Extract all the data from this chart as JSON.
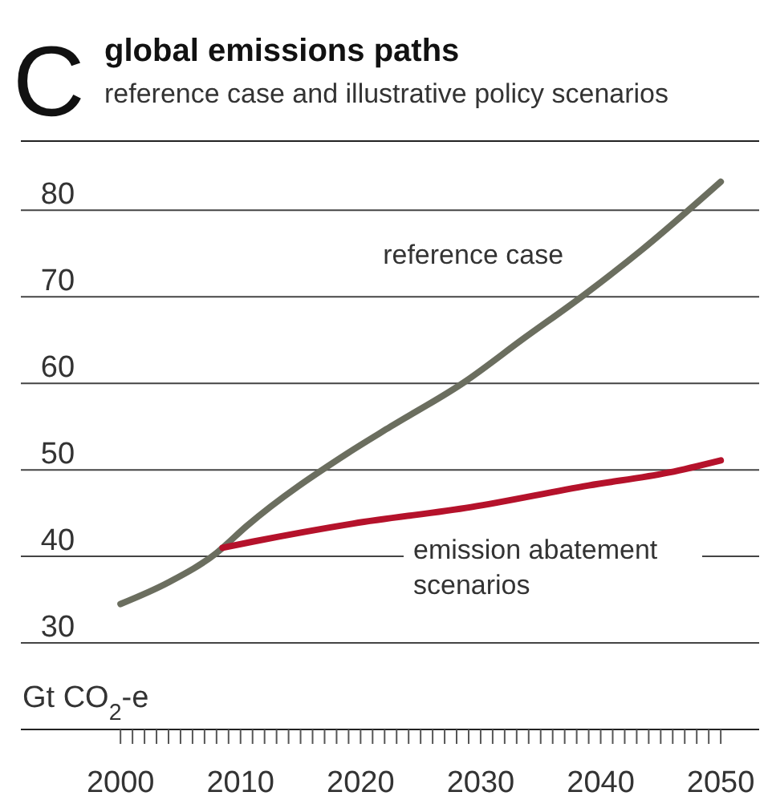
{
  "chart_data": {
    "type": "line",
    "title": "global emissions paths",
    "subtitle": "reference case and illustrative policy scenarios",
    "ylabel": "Gt CO$_{2}$-e",
    "annotations": [
      "C"
    ],
    "xlim": [
      1991.7,
      2053.2
    ],
    "ylim": [
      20,
      88
    ],
    "xticks": [
      2000,
      {
        "value": 2001,
        "label": null
      },
      {
        "value": 2002,
        "label": null
      },
      {
        "value": 2003,
        "label": null
      },
      {
        "value": 2004,
        "label": null
      },
      {
        "value": 2005,
        "label": null
      },
      {
        "value": 2006,
        "label": null
      },
      {
        "value": 2007,
        "label": null
      },
      {
        "value": 2008,
        "label": null
      },
      {
        "value": 2009,
        "label": null
      },
      2010,
      {
        "value": 2011,
        "label": null
      },
      {
        "value": 2012,
        "label": null
      },
      {
        "value": 2013,
        "label": null
      },
      {
        "value": 2014,
        "label": null
      },
      {
        "value": 2015,
        "label": null
      },
      {
        "value": 2016,
        "label": null
      },
      {
        "value": 2017,
        "label": null
      },
      {
        "value": 2018,
        "label": null
      },
      {
        "value": 2019,
        "label": null
      },
      2020,
      {
        "value": 2021,
        "label": null
      },
      {
        "value": 2022,
        "label": null
      },
      {
        "value": 2023,
        "label": null
      },
      {
        "value": 2024,
        "label": null
      },
      {
        "value": 2025,
        "label": null
      },
      {
        "value": 2026,
        "label": null
      },
      {
        "value": 2027,
        "label": null
      },
      {
        "value": 2028,
        "label": null
      },
      {
        "value": 2029,
        "label": null
      },
      2030,
      {
        "value": 2031,
        "label": null
      },
      {
        "value": 2032,
        "label": null
      },
      {
        "value": 2033,
        "label": null
      },
      {
        "value": 2034,
        "label": null
      },
      {
        "value": 2035,
        "label": null
      },
      {
        "value": 2036,
        "label": null
      },
      {
        "value": 2037,
        "label": null
      },
      {
        "value": 2038,
        "label": null
      },
      {
        "value": 2039,
        "label": null
      },
      2040,
      {
        "value": 2041,
        "label": null
      },
      {
        "value": 2042,
        "label": null
      },
      {
        "value": 2043,
        "label": null
      },
      {
        "value": 2044,
        "label": null
      },
      {
        "value": 2045,
        "label": null
      },
      {
        "value": 2046,
        "label": null
      },
      {
        "value": 2047,
        "label": null
      },
      {
        "value": 2048,
        "label": null
      },
      {
        "value": 2049,
        "label": null
      },
      2050
    ],
    "yticks": [
      30,
      40,
      50,
      60,
      70,
      80
    ],
    "grid": "y",
    "marker": "none",
    "line_style": "solid",
    "series": [
      {
        "name": "reference case",
        "color": "#6b6e5f",
        "x": [
          2000,
          2004,
          2008,
          2010.5,
          2019,
          2022.5,
          2028.7,
          2033.6,
          2038.5,
          2043.4,
          2050
        ],
        "values": [
          34.5,
          37,
          40.4,
          43.5,
          52,
          55,
          60.2,
          65.2,
          70.1,
          75.4,
          83.3
        ]
      },
      {
        "name": "emission abatement scenarios",
        "color": "#b5122b",
        "x": [
          2008.5,
          2011,
          2019.4,
          2029.2,
          2039,
          2045.7,
          2050
        ],
        "values": [
          41,
          41.7,
          43.8,
          45.7,
          48.2,
          49.7,
          51.1
        ]
      }
    ]
  }
}
